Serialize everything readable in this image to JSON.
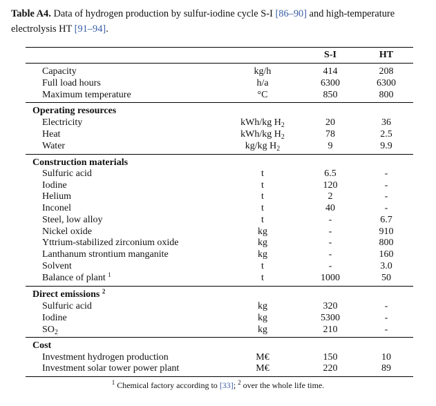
{
  "caption": {
    "label": "Table A4.",
    "text_a": " Data of hydrogen production by sulfur-iodine cycle S-I ",
    "ref_a": "[86–90]",
    "text_b": " and high-temperature electrolysis HT ",
    "ref_b": "[91–94]",
    "text_c": "."
  },
  "header": {
    "si": "S-I",
    "ht": "HT"
  },
  "rows": {
    "r1": {
      "label": "Capacity",
      "unit": "kg/h",
      "si": "414",
      "ht": "208"
    },
    "r2": {
      "label": "Full load hours",
      "unit": "h/a",
      "si": "6300",
      "ht": "6300"
    },
    "r3": {
      "label": "Maximum temperature",
      "unit": "°C",
      "si": "850",
      "ht": "800"
    },
    "s1": {
      "label": "Operating resources"
    },
    "r4": {
      "label": "Electricity",
      "unit_a": "kWh/kg H",
      "unit_sub": "2",
      "si": "20",
      "ht": "36"
    },
    "r5": {
      "label": "Heat",
      "unit_a": "kWh/kg H",
      "unit_sub": "2",
      "si": "78",
      "ht": "2.5"
    },
    "r6": {
      "label": "Water",
      "unit_a": "kg/kg H",
      "unit_sub": "2",
      "si": "9",
      "ht": "9.9"
    },
    "s2": {
      "label": "Construction materials"
    },
    "r7": {
      "label": "Sulfuric acid",
      "unit": "t",
      "si": "6.5",
      "ht": "-"
    },
    "r8": {
      "label": "Iodine",
      "unit": "t",
      "si": "120",
      "ht": "-"
    },
    "r9": {
      "label": "Helium",
      "unit": "t",
      "si": "2",
      "ht": "-"
    },
    "r10": {
      "label": "Inconel",
      "unit": "t",
      "si": "40",
      "ht": "-"
    },
    "r11": {
      "label": "Steel, low alloy",
      "unit": "t",
      "si": "-",
      "ht": "6.7"
    },
    "r12": {
      "label": "Nickel oxide",
      "unit": "kg",
      "si": "-",
      "ht": "910"
    },
    "r13": {
      "label": "Yttrium-stabilized zirconium oxide",
      "unit": "kg",
      "si": "-",
      "ht": "800"
    },
    "r14": {
      "label": "Lanthanum strontium manganite",
      "unit": "kg",
      "si": "-",
      "ht": "160"
    },
    "r15": {
      "label": "Solvent",
      "unit": "t",
      "si": "-",
      "ht": "3.0"
    },
    "r16": {
      "label": "Balance of plant",
      "sup": "1",
      "unit": "t",
      "si": "1000",
      "ht": "50"
    },
    "s3": {
      "label": "Direct emissions",
      "sup": "2"
    },
    "r17": {
      "label": "Sulfuric acid",
      "unit": "kg",
      "si": "320",
      "ht": "-"
    },
    "r18": {
      "label": "Iodine",
      "unit": "kg",
      "si": "5300",
      "ht": "-"
    },
    "r19": {
      "label_a": "SO",
      "label_sub": "2",
      "unit": "kg",
      "si": "210",
      "ht": "-"
    },
    "s4": {
      "label": "Cost"
    },
    "r20": {
      "label": "Investment hydrogen production",
      "unit": "M€",
      "si": "150",
      "ht": "10"
    },
    "r21": {
      "label": "Investment solar tower power plant",
      "unit": "M€",
      "si": "220",
      "ht": "89"
    }
  },
  "footnote": {
    "sup1": "1",
    "text_a": " Chemical factory according to ",
    "ref": "[33]",
    "text_b": "; ",
    "sup2": "2",
    "text_c": " over the whole life time."
  }
}
